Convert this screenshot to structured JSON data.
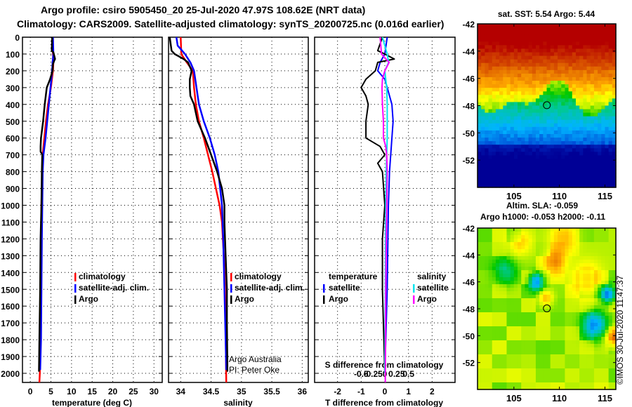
{
  "title": {
    "line1": "Argo profile: csiro 5905450_20 25-Jul-2020 47.97S 108.62E (NRT data)",
    "line2": "Climatology: CARS2009. Satellite-adjusted climatology: synTS_20200725.nc (0.016d earlier)"
  },
  "colors": {
    "climatology": "#ff0000",
    "satellite": "#0000ff",
    "argo": "#000000",
    "sal_satellite": "#00e5ee",
    "sal_argo": "#ff00ff"
  },
  "chart_data": [
    {
      "type": "line",
      "name": "temperature-profile",
      "xlabel": "temperature (deg C)",
      "ylabel": "",
      "xlim": [
        -2,
        32
      ],
      "ylim": [
        2060,
        0
      ],
      "xticks": [
        "0",
        "5",
        "10",
        "15",
        "20",
        "25",
        "30"
      ],
      "yticks": [
        "0",
        "100",
        "200",
        "300",
        "400",
        "500",
        "600",
        "700",
        "800",
        "900",
        "1000",
        "1100",
        "1200",
        "1300",
        "1400",
        "1500",
        "1600",
        "1700",
        "1800",
        "1900",
        "2000"
      ],
      "grid": true,
      "legend": {
        "position": "center-right",
        "entries": [
          "climatology",
          "satellite-adj. clim.",
          "Argo"
        ]
      },
      "series": [
        {
          "name": "climatology",
          "depth": [
            0,
            100,
            150,
            200,
            300,
            400,
            500,
            600,
            700,
            800,
            1000,
            1200,
            1500,
            1800,
            2000,
            2060
          ],
          "values": [
            5.4,
            5.5,
            5.6,
            5.5,
            5.0,
            4.3,
            3.8,
            3.4,
            3.0,
            2.9,
            2.7,
            2.6,
            2.5,
            2.4,
            2.3,
            2.2
          ]
        },
        {
          "name": "satellite-adj. clim.",
          "depth": [
            0,
            100,
            150,
            200,
            300,
            400,
            500,
            600,
            700,
            800,
            1000,
            1200,
            1500,
            1800,
            1980
          ],
          "values": [
            5.5,
            5.6,
            5.4,
            5.3,
            4.9,
            4.5,
            4.1,
            3.7,
            3.2,
            3.0,
            2.9,
            2.8,
            2.7,
            2.6,
            2.4
          ]
        },
        {
          "name": "Argo",
          "depth": [
            0,
            80,
            90,
            130,
            140,
            160,
            200,
            250,
            300,
            400,
            500,
            600,
            650,
            680,
            700,
            800,
            1000,
            1200,
            1500,
            1800,
            1990
          ],
          "values": [
            5.3,
            5.2,
            5.6,
            6.0,
            5.8,
            5.5,
            5.4,
            4.8,
            4.0,
            3.5,
            3.1,
            2.6,
            2.5,
            2.5,
            2.9,
            2.8,
            2.7,
            2.5,
            2.4,
            2.2,
            2.1
          ]
        }
      ]
    },
    {
      "type": "line",
      "name": "salinity-profile",
      "xlabel": "salinity",
      "xlim": [
        33.8,
        36.1
      ],
      "ylim": [
        2060,
        0
      ],
      "xticks": [
        "34",
        "34.5",
        "35",
        "35.5",
        "36"
      ],
      "grid": true,
      "legend": {
        "position": "center-right",
        "entries": [
          "climatology",
          "satellite-adj. clim.",
          "Argo"
        ]
      },
      "annotation": [
        "Argo Australia",
        "PI: Peter Oke"
      ],
      "series": [
        {
          "name": "climatology",
          "depth": [
            0,
            100,
            150,
            200,
            300,
            400,
            500,
            600,
            700,
            800,
            900,
            1000,
            1100,
            1300,
            1500,
            1700,
            2060
          ],
          "values": [
            34.0,
            34.01,
            34.1,
            34.2,
            34.22,
            34.25,
            34.3,
            34.38,
            34.45,
            34.52,
            34.58,
            34.64,
            34.68,
            34.71,
            34.73,
            34.74,
            34.75
          ]
        },
        {
          "name": "satellite-adj. clim.",
          "depth": [
            0,
            50,
            70,
            100,
            150,
            200,
            300,
            400,
            500,
            600,
            700,
            800,
            900,
            1000,
            1200,
            1500,
            1800,
            1980
          ],
          "values": [
            33.93,
            33.95,
            34.0,
            34.07,
            34.16,
            34.22,
            34.26,
            34.3,
            34.38,
            34.48,
            34.56,
            34.62,
            34.65,
            34.68,
            34.7,
            34.72,
            34.74,
            34.75
          ]
        },
        {
          "name": "Argo",
          "depth": [
            0,
            80,
            100,
            130,
            150,
            200,
            250,
            300,
            350,
            400,
            450,
            500,
            550,
            600,
            700,
            800,
            900,
            1000,
            1100,
            1300,
            1500,
            1700,
            1990
          ],
          "values": [
            33.82,
            33.85,
            33.9,
            34.05,
            34.12,
            34.18,
            34.15,
            34.15,
            34.16,
            34.22,
            34.25,
            34.28,
            34.34,
            34.4,
            34.5,
            34.6,
            34.68,
            34.72,
            34.72,
            34.74,
            34.76,
            34.76,
            34.77
          ]
        }
      ]
    },
    {
      "type": "line",
      "name": "difference-profile",
      "xlabel": "T difference from climatology",
      "xlabel2": "S difference from climatology",
      "xlim": [
        -3,
        3
      ],
      "ylim": [
        2060,
        0
      ],
      "xticks": [
        "-2",
        "-1",
        "0",
        "1",
        "2"
      ],
      "xticks2": [
        "-0.5",
        "-0.25",
        "0",
        "0.25",
        "0.5"
      ],
      "grid": true,
      "legend": {
        "position": "center",
        "groups": [
          {
            "title": "temperature",
            "entries": [
              "satellite",
              "Argo"
            ]
          },
          {
            "title": "salinity",
            "entries": [
              "satellite",
              "Argo"
            ]
          }
        ]
      },
      "series": [
        {
          "name": "temperature satellite",
          "depth": [
            0,
            100,
            150,
            200,
            250,
            300,
            400,
            500,
            600,
            800,
            1000,
            1500,
            2000
          ],
          "values": [
            0.1,
            0.0,
            -0.2,
            -0.3,
            0.0,
            0.1,
            0.3,
            0.35,
            0.3,
            0.2,
            0.15,
            0.1,
            0.0
          ]
        },
        {
          "name": "temperature Argo",
          "depth": [
            0,
            80,
            100,
            130,
            150,
            200,
            250,
            300,
            350,
            400,
            500,
            600,
            650,
            700,
            750,
            800,
            1000,
            1200,
            1500,
            2000
          ],
          "values": [
            -0.1,
            -0.3,
            0.0,
            0.4,
            -0.3,
            -0.4,
            -0.8,
            -1.0,
            -0.8,
            -0.7,
            -0.8,
            -0.8,
            -0.2,
            0.0,
            -0.3,
            -0.1,
            0.0,
            -0.1,
            -0.1,
            0.0
          ]
        },
        {
          "name": "salinity satellite",
          "depth": [
            0,
            100,
            150,
            200,
            250,
            300,
            400,
            500,
            600,
            800,
            1000,
            1500,
            2000
          ],
          "values": [
            -0.05,
            0.05,
            0.08,
            0.0,
            0.02,
            0.04,
            0.05,
            0.05,
            0.05,
            0.03,
            0.02,
            0.01,
            0.0
          ]
        },
        {
          "name": "salinity Argo",
          "depth": [
            0,
            100,
            150,
            200,
            250,
            300,
            400,
            500,
            600,
            650,
            700,
            800,
            1000,
            1500,
            2060
          ],
          "values": [
            -0.1,
            -0.07,
            0.09,
            0.0,
            -0.05,
            -0.06,
            -0.05,
            -0.03,
            -0.03,
            0.02,
            0.04,
            0.05,
            0.04,
            0.02,
            0.01
          ]
        }
      ]
    },
    {
      "type": "heatmap",
      "name": "sst-map",
      "title": "sat. SST: 5.54 Argo: 5.44",
      "xlim": [
        101,
        116.2
      ],
      "ylim": [
        -54,
        -42
      ],
      "xticks": [
        "105",
        "110",
        "115"
      ],
      "yticks": [
        "-42",
        "-44",
        "-46",
        "-48",
        "-50",
        "-52"
      ],
      "marker": {
        "lon": 108.62,
        "lat": -47.97
      }
    },
    {
      "type": "heatmap",
      "name": "sla-map",
      "title1": "Altim. SLA: -0.059",
      "title2": "Argo h1000: -0.053 h2000: -0.11",
      "xlim": [
        101,
        116.2
      ],
      "ylim": [
        -54,
        -42
      ],
      "xticks": [
        "105",
        "110",
        "115"
      ],
      "yticks": [
        "-42",
        "-44",
        "-46",
        "-48",
        "-50",
        "-52"
      ],
      "marker": {
        "lon": 108.62,
        "lat": -47.97
      }
    }
  ],
  "legend_labels": {
    "climatology": "climatology",
    "satellite_adj": "satellite-adj. clim.",
    "argo": "Argo",
    "temperature": "temperature",
    "salinity": "salinity",
    "satellite": "satellite"
  },
  "credit": {
    "line1": "Argo Australia",
    "line2": "PI: Peter Oke"
  },
  "stamp": "©IMOS 30-Jul-2020 11:47:37"
}
